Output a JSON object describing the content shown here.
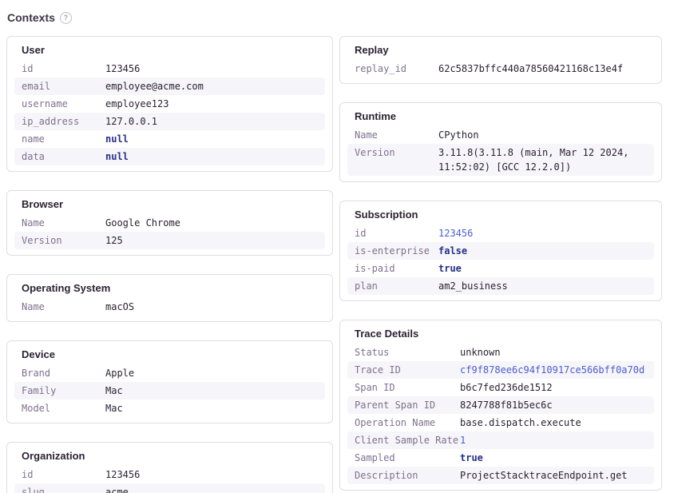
{
  "colors": {
    "text": "#2b2233",
    "key": "#80708f",
    "primitive": "#4a5dce",
    "primitive_bold": "#262f87",
    "link": "#4a5dce",
    "stripe": "#f6f5f9",
    "border": "#e0dce5"
  },
  "header": {
    "title": "Contexts",
    "help_icon_glyph": "?"
  },
  "columns": {
    "left": [
      {
        "title": "User",
        "rows": [
          {
            "key": "id",
            "value": "123456",
            "style": "plain"
          },
          {
            "key": "email",
            "value": "employee@acme.com",
            "style": "plain"
          },
          {
            "key": "username",
            "value": "employee123",
            "style": "plain"
          },
          {
            "key": "ip_address",
            "value": "127.0.0.1",
            "style": "plain"
          },
          {
            "key": "name",
            "value": "null",
            "style": "primitive-bold"
          },
          {
            "key": "data",
            "value": "null",
            "style": "primitive-bold"
          }
        ]
      },
      {
        "title": "Browser",
        "rows": [
          {
            "key": "Name",
            "value": "Google Chrome",
            "style": "plain"
          },
          {
            "key": "Version",
            "value": "125",
            "style": "plain"
          }
        ]
      },
      {
        "title": "Operating System",
        "rows": [
          {
            "key": "Name",
            "value": "macOS",
            "style": "plain"
          }
        ]
      },
      {
        "title": "Device",
        "rows": [
          {
            "key": "Brand",
            "value": "Apple",
            "style": "plain"
          },
          {
            "key": "Family",
            "value": "Mac",
            "style": "plain"
          },
          {
            "key": "Model",
            "value": "Mac",
            "style": "plain"
          }
        ]
      },
      {
        "title": "Organization",
        "rows": [
          {
            "key": "id",
            "value": "123456",
            "style": "plain"
          },
          {
            "key": "slug",
            "value": "acme",
            "style": "plain"
          }
        ]
      }
    ],
    "right": [
      {
        "title": "Replay",
        "rows": [
          {
            "key": "replay_id",
            "value": "62c5837bffc440a78560421168c13e4f",
            "style": "plain"
          }
        ]
      },
      {
        "title": "Runtime",
        "rows": [
          {
            "key": "Name",
            "value": "CPython",
            "style": "plain"
          },
          {
            "key": "Version",
            "value": "3.11.8(3.11.8 (main, Mar 12 2024, 11:52:02) [GCC 12.2.0])",
            "style": "plain"
          }
        ]
      },
      {
        "title": "Subscription",
        "rows": [
          {
            "key": "id",
            "value": "123456",
            "style": "primitive"
          },
          {
            "key": "is-enterprise",
            "value": "false",
            "style": "primitive-bold"
          },
          {
            "key": "is-paid",
            "value": "true",
            "style": "primitive-bold"
          },
          {
            "key": "plan",
            "value": "am2_business",
            "style": "plain"
          }
        ]
      },
      {
        "title": "Trace Details",
        "rows": [
          {
            "key": "Status",
            "value": "unknown",
            "style": "plain"
          },
          {
            "key": "Trace ID",
            "value": "cf9f878ee6c94f10917ce566bff0a70d",
            "style": "link"
          },
          {
            "key": "Span ID",
            "value": "b6c7fed236de1512",
            "style": "plain"
          },
          {
            "key": "Parent Span ID",
            "value": "8247788f81b5ec6c",
            "style": "plain"
          },
          {
            "key": "Operation Name",
            "value": "base.dispatch.execute",
            "style": "plain"
          },
          {
            "key": "Client Sample Rate",
            "value": "1",
            "style": "primitive"
          },
          {
            "key": "Sampled",
            "value": "true",
            "style": "primitive-bold"
          },
          {
            "key": "Description",
            "value": "ProjectStacktraceEndpoint.get",
            "style": "plain"
          }
        ]
      }
    ]
  }
}
